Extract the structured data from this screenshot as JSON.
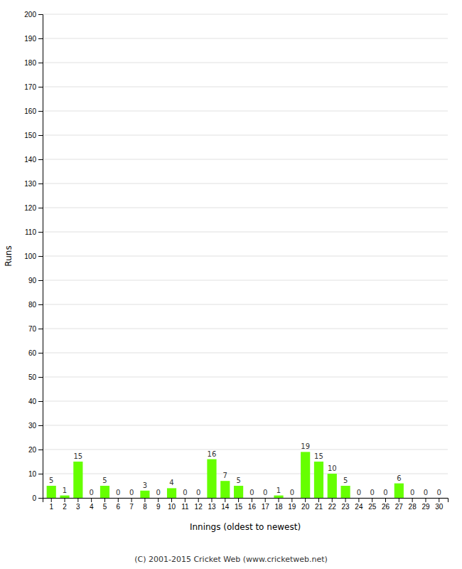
{
  "chart_data": {
    "type": "bar",
    "categories": [
      "1",
      "2",
      "3",
      "4",
      "5",
      "6",
      "7",
      "8",
      "9",
      "10",
      "11",
      "12",
      "13",
      "14",
      "15",
      "16",
      "17",
      "18",
      "19",
      "20",
      "21",
      "22",
      "23",
      "24",
      "25",
      "26",
      "27",
      "28",
      "29",
      "30"
    ],
    "values": [
      5,
      1,
      15,
      0,
      5,
      0,
      0,
      3,
      0,
      4,
      0,
      0,
      16,
      7,
      5,
      0,
      0,
      1,
      0,
      19,
      15,
      10,
      5,
      0,
      0,
      0,
      6,
      0,
      0,
      0
    ],
    "color": "#66ff00",
    "xlabel": "Innings (oldest to newest)",
    "ylabel": "Runs",
    "ylim": [
      0,
      200
    ],
    "yticks": [
      0,
      10,
      20,
      30,
      40,
      50,
      60,
      70,
      80,
      90,
      100,
      110,
      120,
      130,
      140,
      150,
      160,
      170,
      180,
      190,
      200
    ],
    "grid": true,
    "data_labels": true,
    "annotations": [
      "(C) 2001-2015 Cricket Web (www.cricketweb.net)"
    ]
  }
}
